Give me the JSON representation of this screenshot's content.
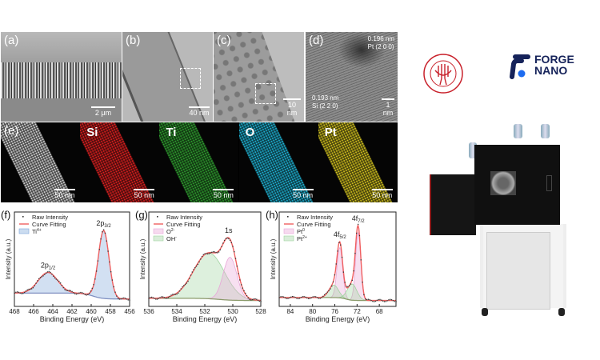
{
  "figure": {
    "panels": {
      "a": {
        "label": "(a)",
        "scale": "2 μm"
      },
      "b": {
        "label": "(b)",
        "scale": "40 nm"
      },
      "c": {
        "label": "(c)",
        "scale": "10 nm"
      },
      "d": {
        "label": "(d)",
        "scale": "1 nm",
        "ann1": "0.196 nm",
        "ann1b": "Pt (2 0 0)",
        "ann2": "0.193 nm",
        "ann2b": "Si (2 2 0)"
      },
      "e": {
        "label": "(e)",
        "maps": [
          {
            "element": "",
            "scale": "50 nm",
            "color": "#d9d9d9"
          },
          {
            "element": "Si",
            "scale": "50 nm",
            "color": "#e02020"
          },
          {
            "element": "Ti",
            "scale": "50 nm",
            "color": "#2fa02f"
          },
          {
            "element": "O",
            "scale": "50 nm",
            "color": "#1fb5d6"
          },
          {
            "element": "Pt",
            "scale": "50 nm",
            "color": "#d6c51f"
          }
        ]
      }
    }
  },
  "logos": {
    "university": "DONGHUA UNIVERSITY 1951",
    "company_line1": "FORGE",
    "company_line2": "NANO",
    "university_color": "#c8202a",
    "company_color": "#16235a",
    "company_dot_color": "#1e6cf0"
  },
  "chart_data": [
    {
      "id": "f",
      "type": "line",
      "panel_label": "(f)",
      "xlabel": "Binding Energy (eV)",
      "ylabel": "Intensity (a.u.)",
      "xlim": [
        468,
        456
      ],
      "ylim": [
        -0.08,
        1.2
      ],
      "xticks": [
        468,
        466,
        464,
        462,
        460,
        458,
        456
      ],
      "legend": [
        {
          "text": "Raw Intensity",
          "kind": "dot"
        },
        {
          "text": "Curve Fitting",
          "kind": "line"
        },
        {
          "text": "Ti",
          "sup": "4+",
          "kind": "fill",
          "color": "#7da7d9"
        }
      ],
      "background": {
        "left": 0.1,
        "right": 0.02,
        "step_center": 459.8
      },
      "components": [
        {
          "name": "Ti4+ 2p3/2",
          "center": 458.7,
          "fwhm": 1.3,
          "height": 0.92,
          "color": "#7da7d9"
        },
        {
          "name": "Ti4+ 2p1/2",
          "center": 464.5,
          "fwhm": 2.4,
          "height": 0.28,
          "color": "#7da7d9"
        }
      ],
      "annotations": [
        {
          "text": "2p",
          "sub": "1/2",
          "x": 464.5
        },
        {
          "text": "2p",
          "sub": "3/2",
          "x": 458.7
        }
      ]
    },
    {
      "id": "g",
      "type": "line",
      "panel_label": "(g)",
      "xlabel": "Binding Energy (eV)",
      "ylabel": "Intensity (a.u.)",
      "xlim": [
        536,
        528
      ],
      "ylim": [
        -0.08,
        1.2
      ],
      "xticks": [
        536,
        534,
        532,
        530,
        528
      ],
      "legend": [
        {
          "text": "Raw Intensity",
          "kind": "dot"
        },
        {
          "text": "Curve Fitting",
          "kind": "line"
        },
        {
          "text": "O",
          "sup": "2-",
          "kind": "fill",
          "color": "#e8a6d8"
        },
        {
          "text": "OH",
          "sup": "-",
          "kind": "fill",
          "color": "#9fd39f"
        }
      ],
      "background": {
        "left": 0.03,
        "right": 0.0,
        "step_center": 531
      },
      "components": [
        {
          "name": "OH-",
          "center": 531.7,
          "fwhm": 2.6,
          "height": 0.62,
          "color": "#9fd39f"
        },
        {
          "name": "O2-",
          "center": 530.2,
          "fwhm": 1.15,
          "height": 0.58,
          "color": "#e8a6d8"
        }
      ],
      "annotations": [
        {
          "text": "1s",
          "sub": "",
          "x": 530.3
        }
      ]
    },
    {
      "id": "h",
      "type": "line",
      "panel_label": "(h)",
      "xlabel": "Binding Energy (eV)",
      "ylabel": "Intensity (a.u.)",
      "xlim": [
        86,
        65
      ],
      "ylim": [
        -0.08,
        1.2
      ],
      "xticks": [
        84,
        80,
        76,
        72,
        68
      ],
      "legend": [
        {
          "text": "Raw Intensity",
          "kind": "dot"
        },
        {
          "text": "Curve Fitting",
          "kind": "line"
        },
        {
          "text": "Pt",
          "sup": "0",
          "kind": "fill",
          "color": "#e8a6d8"
        },
        {
          "text": "Pt",
          "sup": "2+",
          "kind": "fill",
          "color": "#9fd39f"
        }
      ],
      "background": {
        "left": 0.04,
        "right": 0.0,
        "step_center": 74
      },
      "components": [
        {
          "name": "Pt0 4f7/2",
          "center": 71.8,
          "fwhm": 1.1,
          "height": 0.92,
          "color": "#e8a6d8"
        },
        {
          "name": "Pt0 4f5/2",
          "center": 75.1,
          "fwhm": 1.2,
          "height": 0.68,
          "color": "#e8a6d8"
        },
        {
          "name": "Pt2+ 4f7/2",
          "center": 72.9,
          "fwhm": 2.0,
          "height": 0.22,
          "color": "#9fd39f"
        },
        {
          "name": "Pt2+ 4f5/2",
          "center": 76.2,
          "fwhm": 2.0,
          "height": 0.17,
          "color": "#9fd39f"
        }
      ],
      "annotations": [
        {
          "text": "4f",
          "sub": "5/2",
          "x": 75.1
        },
        {
          "text": "4f",
          "sub": "7/2",
          "x": 71.8
        }
      ]
    }
  ]
}
